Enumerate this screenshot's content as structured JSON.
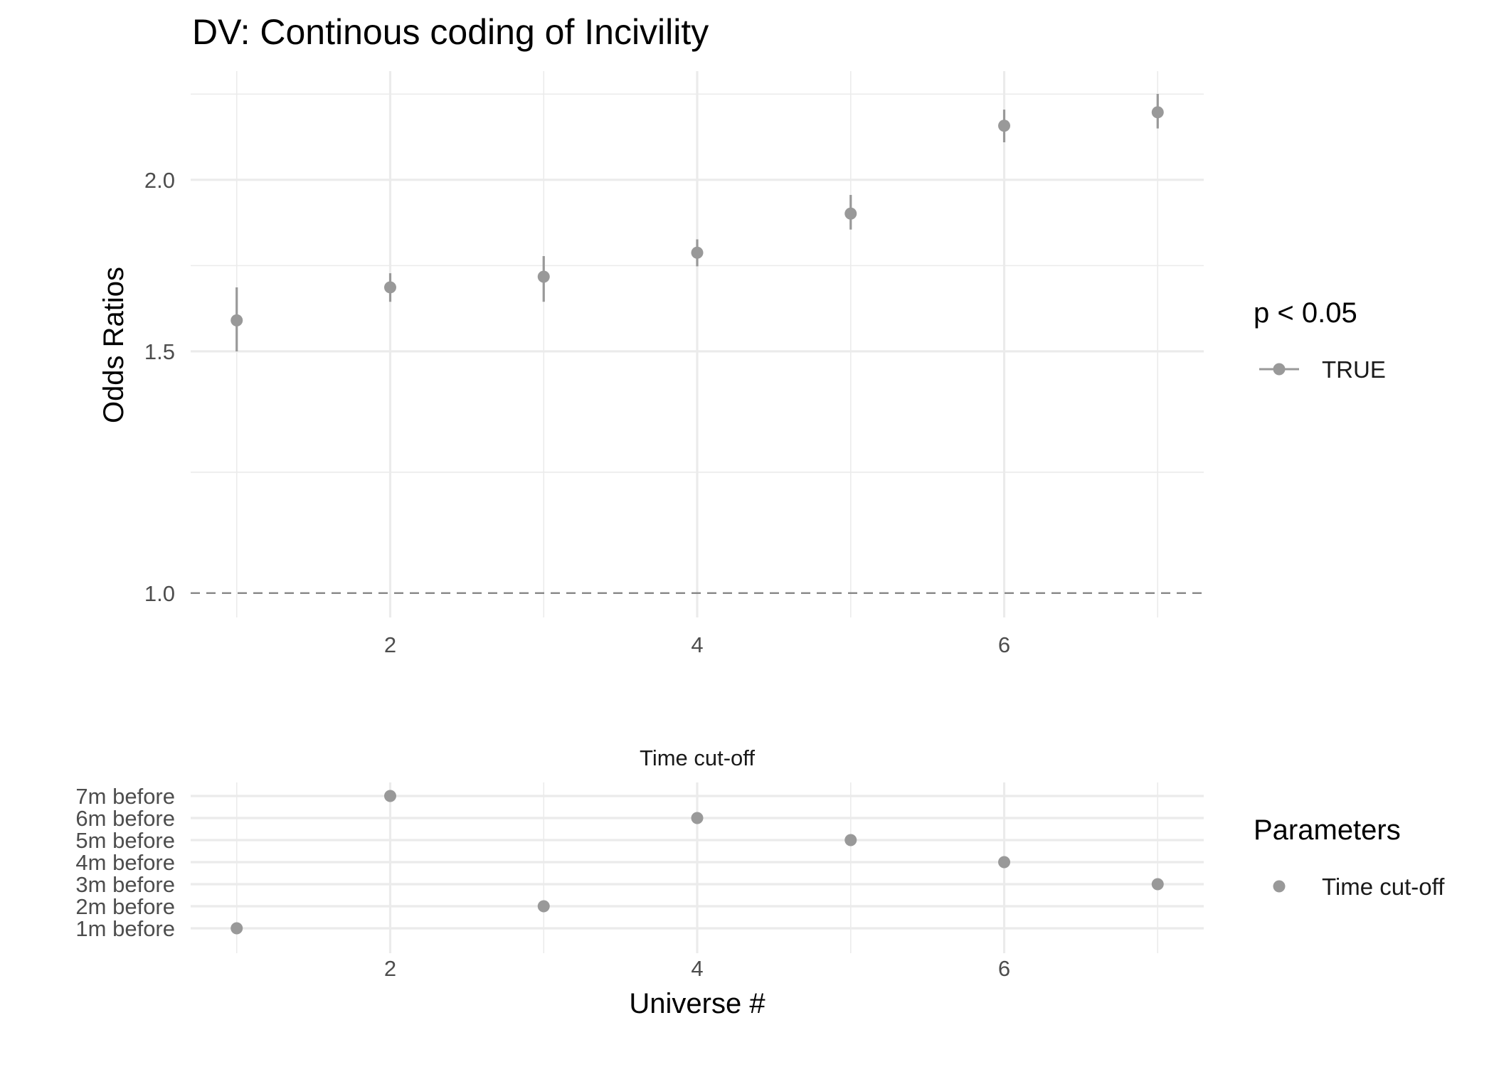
{
  "chart_data": [
    {
      "type": "scatter",
      "title": "DV: Continous coding of Incivility",
      "xlabel": "",
      "ylabel": "Odds Ratios",
      "x_ticks": [
        2,
        4,
        6
      ],
      "x_tick_labels": [
        "2",
        "4",
        "6"
      ],
      "xlim": [
        0.7,
        7.3
      ],
      "y_scale": "log",
      "y_ticks": [
        1.0,
        1.5,
        2.0
      ],
      "y_tick_labels": [
        "1.0",
        "1.5",
        "2.0"
      ],
      "ylim": [
        0.96,
        2.4
      ],
      "reference_line": {
        "y": 1.0,
        "style": "dashed"
      },
      "grid": true,
      "legend": {
        "title": "p < 0.05",
        "placement": "right",
        "entries": [
          "TRUE"
        ]
      },
      "series": [
        {
          "name": "TRUE",
          "color": "#999999",
          "x": [
            1,
            2,
            3,
            4,
            5,
            6,
            7
          ],
          "y": [
            1.58,
            1.67,
            1.7,
            1.77,
            1.89,
            2.19,
            2.24
          ],
          "ci_low": [
            1.5,
            1.63,
            1.63,
            1.73,
            1.84,
            2.13,
            2.18
          ],
          "ci_high": [
            1.67,
            1.71,
            1.76,
            1.81,
            1.95,
            2.25,
            2.31
          ]
        }
      ]
    },
    {
      "type": "scatter",
      "facet_label": "Time cut-off",
      "xlabel": "Universe #",
      "ylabel": "",
      "x_ticks": [
        2,
        4,
        6
      ],
      "x_tick_labels": [
        "2",
        "4",
        "6"
      ],
      "xlim": [
        0.7,
        7.3
      ],
      "categories": [
        "1m before",
        "2m before",
        "3m before",
        "4m before",
        "5m before",
        "6m before",
        "7m before"
      ],
      "grid": true,
      "legend": {
        "title": "Parameters",
        "placement": "right",
        "entries": [
          "Time cut-off"
        ]
      },
      "series": [
        {
          "name": "Time cut-off",
          "color": "#999999",
          "x": [
            1,
            2,
            3,
            4,
            5,
            6,
            7
          ],
          "y": [
            "1m before",
            "7m before",
            "2m before",
            "6m before",
            "5m before",
            "4m before",
            "3m before"
          ]
        }
      ]
    }
  ]
}
